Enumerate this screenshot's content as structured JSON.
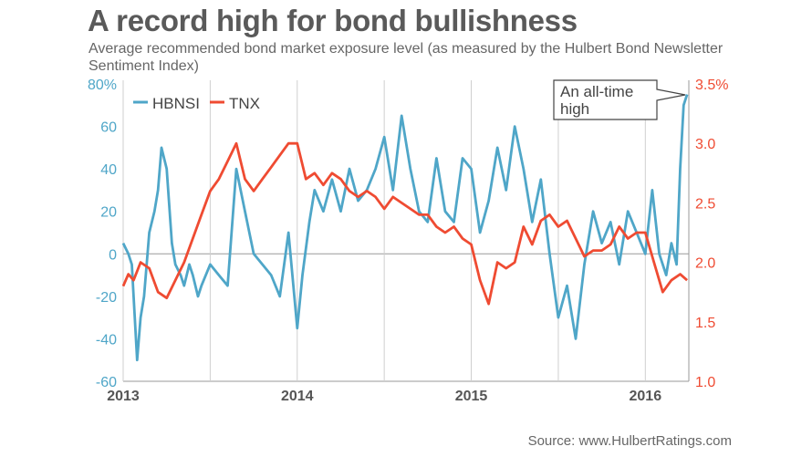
{
  "title": "A record high for bond bullishness",
  "subtitle": "Average recommended bond market exposure level (as measured by the Hulbert Bond Newsletter Sentiment Index)",
  "source": "Source: www.HulbertRatings.com",
  "annotation": "An all-time high",
  "colors": {
    "hbnsi": "#4fa6c8",
    "tnx": "#ef4b32",
    "left_axis": "#4fa6c8",
    "right_axis": "#ef4b32",
    "title": "#5a5a5a",
    "grid": "#cfcfcf"
  },
  "chart_data": {
    "type": "line",
    "title": "A record high for bond bullishness",
    "xlabel": "",
    "ylabel": "",
    "x_ticks": [
      "2013",
      "2014",
      "2015",
      "2016"
    ],
    "y_left": {
      "ticks": [
        "80%",
        "60",
        "40",
        "20",
        "0",
        "-20",
        "-40",
        "-60"
      ],
      "range": [
        -60,
        80
      ]
    },
    "y_right": {
      "ticks": [
        "3.5%",
        "3.0",
        "2.5",
        "2.0",
        "1.5",
        "1.0"
      ],
      "range": [
        1.0,
        3.5
      ]
    },
    "grid": "vertical year lines",
    "legend": "top-left",
    "series": [
      {
        "name": "HBNSI",
        "axis": "left",
        "x": [
          2013.0,
          2013.03,
          2013.05,
          2013.08,
          2013.1,
          2013.12,
          2013.15,
          2013.18,
          2013.2,
          2013.22,
          2013.25,
          2013.28,
          2013.3,
          2013.33,
          2013.35,
          2013.38,
          2013.4,
          2013.43,
          2013.45,
          2013.5,
          2013.55,
          2013.6,
          2013.65,
          2013.7,
          2013.75,
          2013.8,
          2013.85,
          2013.9,
          2013.95,
          2014.0,
          2014.03,
          2014.07,
          2014.1,
          2014.15,
          2014.2,
          2014.25,
          2014.3,
          2014.35,
          2014.4,
          2014.45,
          2014.5,
          2014.55,
          2014.6,
          2014.65,
          2014.7,
          2014.75,
          2014.8,
          2014.85,
          2014.9,
          2014.95,
          2015.0,
          2015.05,
          2015.1,
          2015.15,
          2015.2,
          2015.25,
          2015.3,
          2015.35,
          2015.4,
          2015.45,
          2015.5,
          2015.55,
          2015.6,
          2015.65,
          2015.7,
          2015.75,
          2015.8,
          2015.85,
          2015.9,
          2015.95,
          2016.0,
          2016.04,
          2016.08,
          2016.12,
          2016.15,
          2016.18,
          2016.2,
          2016.22,
          2016.24
        ],
        "values": [
          5,
          0,
          -5,
          -50,
          -30,
          -20,
          10,
          20,
          30,
          50,
          40,
          5,
          -5,
          -10,
          -15,
          -5,
          -10,
          -20,
          -15,
          -5,
          -10,
          -15,
          40,
          20,
          0,
          -5,
          -10,
          -20,
          10,
          -35,
          -10,
          15,
          30,
          20,
          35,
          20,
          40,
          25,
          30,
          40,
          55,
          30,
          65,
          40,
          20,
          15,
          45,
          20,
          15,
          45,
          40,
          10,
          25,
          50,
          30,
          60,
          40,
          15,
          35,
          0,
          -30,
          -15,
          -40,
          -5,
          20,
          5,
          15,
          -5,
          20,
          10,
          0,
          30,
          0,
          -10,
          5,
          -5,
          40,
          70,
          75
        ]
      },
      {
        "name": "TNX",
        "axis": "right",
        "x": [
          2013.0,
          2013.03,
          2013.06,
          2013.1,
          2013.15,
          2013.2,
          2013.25,
          2013.3,
          2013.35,
          2013.4,
          2013.45,
          2013.5,
          2013.55,
          2013.6,
          2013.65,
          2013.7,
          2013.75,
          2013.8,
          2013.85,
          2013.9,
          2013.95,
          2014.0,
          2014.05,
          2014.1,
          2014.15,
          2014.2,
          2014.25,
          2014.3,
          2014.35,
          2014.4,
          2014.45,
          2014.5,
          2014.55,
          2014.6,
          2014.65,
          2014.7,
          2014.75,
          2014.8,
          2014.85,
          2014.9,
          2014.95,
          2015.0,
          2015.05,
          2015.1,
          2015.15,
          2015.2,
          2015.25,
          2015.3,
          2015.35,
          2015.4,
          2015.45,
          2015.5,
          2015.55,
          2015.6,
          2015.65,
          2015.7,
          2015.75,
          2015.8,
          2015.85,
          2015.9,
          2015.95,
          2016.0,
          2016.05,
          2016.1,
          2016.15,
          2016.2,
          2016.24
        ],
        "values": [
          1.8,
          1.9,
          1.85,
          2.0,
          1.95,
          1.75,
          1.7,
          1.85,
          2.0,
          2.2,
          2.4,
          2.6,
          2.7,
          2.85,
          3.0,
          2.7,
          2.6,
          2.7,
          2.8,
          2.9,
          3.0,
          3.0,
          2.7,
          2.75,
          2.65,
          2.75,
          2.7,
          2.6,
          2.55,
          2.6,
          2.55,
          2.45,
          2.55,
          2.5,
          2.45,
          2.4,
          2.4,
          2.3,
          2.25,
          2.3,
          2.2,
          2.15,
          1.85,
          1.65,
          2.0,
          1.95,
          2.0,
          2.3,
          2.15,
          2.35,
          2.4,
          2.3,
          2.35,
          2.2,
          2.05,
          2.1,
          2.1,
          2.15,
          2.3,
          2.2,
          2.25,
          2.25,
          2.0,
          1.75,
          1.85,
          1.9,
          1.85
        ]
      }
    ]
  }
}
